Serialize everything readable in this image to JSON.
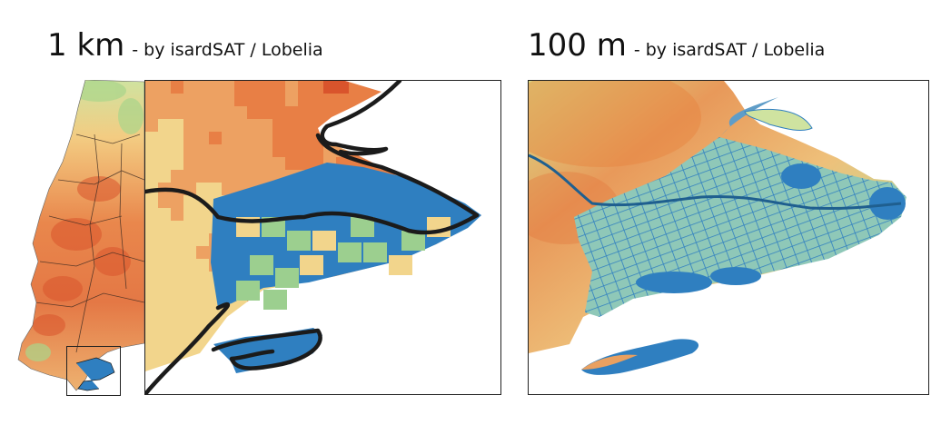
{
  "left_panel": {
    "resolution": "1 km",
    "credit": "- by isardSAT / Lobelia"
  },
  "right_panel": {
    "resolution": "100 m",
    "credit": "- by isardSAT / Lobelia"
  },
  "colors": {
    "water": "#2f7fc0",
    "wet": "#9ccf8f",
    "mid": "#f2d58c",
    "dry": "#e87f45",
    "very_dry": "#d9542c"
  }
}
